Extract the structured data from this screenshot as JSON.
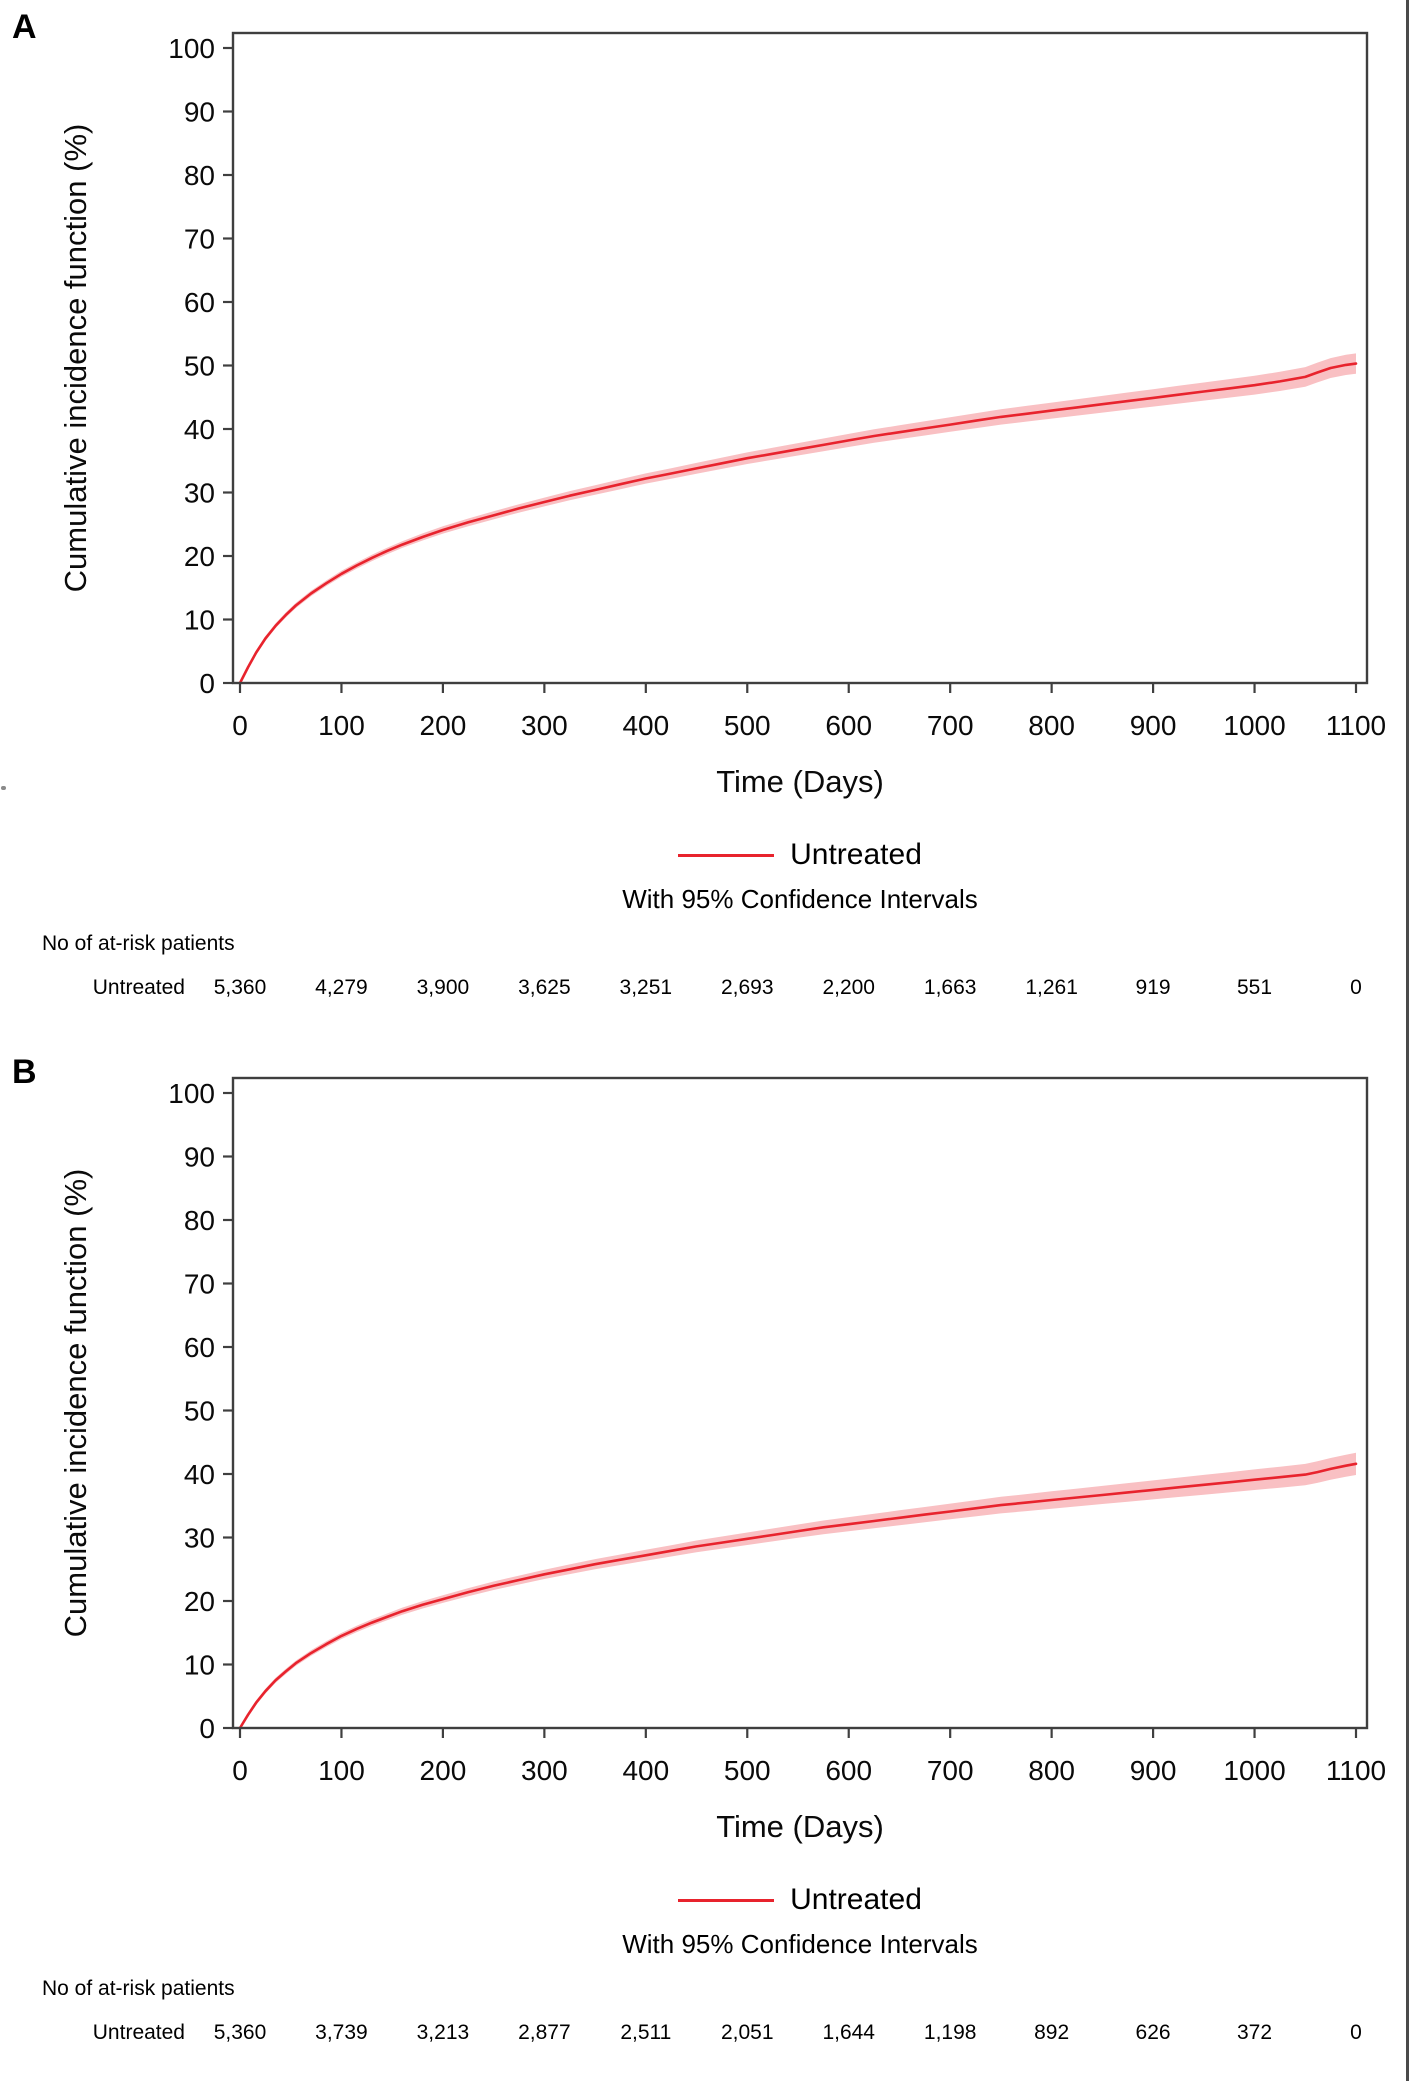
{
  "page": {
    "panel_a_letter": "A",
    "panel_b_letter": "B"
  },
  "colors": {
    "curve_red": "#e8232d",
    "band_pink": "#f9c0c3",
    "axis_gray": "#3f3f3f"
  },
  "chart_data": [
    {
      "panel": "A",
      "type": "line",
      "xlabel": "Time (Days)",
      "ylabel": "Cumulative incidence function (%)",
      "xlim": [
        0,
        1100
      ],
      "ylim": [
        0,
        100
      ],
      "x_ticks": [
        0,
        100,
        200,
        300,
        400,
        500,
        600,
        700,
        800,
        900,
        1000,
        1100
      ],
      "y_ticks": [
        0,
        10,
        20,
        30,
        40,
        50,
        60,
        70,
        80,
        90,
        100
      ],
      "grid": false,
      "legend": {
        "label": "Untreated",
        "note": "With 95% Confidence Intervals",
        "position": "bottom-center"
      },
      "series": [
        {
          "name": "Untreated",
          "color": "#e8232d",
          "band_color": "#f9c0c3",
          "ci_halfwidth_start": 0.35,
          "ci_halfwidth_end": 1.6,
          "points": [
            [
              0,
              0
            ],
            [
              8,
              2.5
            ],
            [
              16,
              4.8
            ],
            [
              25,
              7.0
            ],
            [
              35,
              9.0
            ],
            [
              45,
              10.7
            ],
            [
              55,
              12.2
            ],
            [
              70,
              14.1
            ],
            [
              85,
              15.7
            ],
            [
              100,
              17.2
            ],
            [
              115,
              18.5
            ],
            [
              130,
              19.7
            ],
            [
              145,
              20.8
            ],
            [
              160,
              21.8
            ],
            [
              180,
              23.0
            ],
            [
              200,
              24.1
            ],
            [
              225,
              25.3
            ],
            [
              250,
              26.4
            ],
            [
              275,
              27.5
            ],
            [
              300,
              28.5
            ],
            [
              325,
              29.5
            ],
            [
              350,
              30.4
            ],
            [
              375,
              31.3
            ],
            [
              400,
              32.2
            ],
            [
              425,
              33.0
            ],
            [
              450,
              33.8
            ],
            [
              475,
              34.6
            ],
            [
              500,
              35.4
            ],
            [
              525,
              36.1
            ],
            [
              550,
              36.8
            ],
            [
              575,
              37.5
            ],
            [
              600,
              38.2
            ],
            [
              625,
              38.9
            ],
            [
              650,
              39.5
            ],
            [
              675,
              40.1
            ],
            [
              700,
              40.7
            ],
            [
              725,
              41.3
            ],
            [
              750,
              41.9
            ],
            [
              775,
              42.4
            ],
            [
              800,
              42.9
            ],
            [
              825,
              43.4
            ],
            [
              850,
              43.9
            ],
            [
              875,
              44.4
            ],
            [
              900,
              44.9
            ],
            [
              925,
              45.4
            ],
            [
              950,
              45.9
            ],
            [
              975,
              46.4
            ],
            [
              1000,
              46.9
            ],
            [
              1025,
              47.5
            ],
            [
              1050,
              48.2
            ],
            [
              1062,
              48.9
            ],
            [
              1075,
              49.6
            ],
            [
              1090,
              50.1
            ],
            [
              1100,
              50.3
            ]
          ]
        }
      ],
      "at_risk": {
        "header": "No of at-risk patients",
        "row_label": "Untreated",
        "values": [
          "5,360",
          "4,279",
          "3,900",
          "3,625",
          "3,251",
          "2,693",
          "2,200",
          "1,663",
          "1,261",
          "919",
          "551",
          "0"
        ]
      }
    },
    {
      "panel": "B",
      "type": "line",
      "xlabel": "Time (Days)",
      "ylabel": "Cumulative incidence function (%)",
      "xlim": [
        0,
        1100
      ],
      "ylim": [
        0,
        100
      ],
      "x_ticks": [
        0,
        100,
        200,
        300,
        400,
        500,
        600,
        700,
        800,
        900,
        1000,
        1100
      ],
      "y_ticks": [
        0,
        10,
        20,
        30,
        40,
        50,
        60,
        70,
        80,
        90,
        100
      ],
      "grid": false,
      "legend": {
        "label": "Untreated",
        "note": "With 95% Confidence Intervals",
        "position": "bottom-center"
      },
      "series": [
        {
          "name": "Untreated",
          "color": "#e8232d",
          "band_color": "#f9c0c3",
          "ci_halfwidth_start": 0.35,
          "ci_halfwidth_end": 1.75,
          "points": [
            [
              0,
              0
            ],
            [
              8,
              2.1
            ],
            [
              16,
              4.0
            ],
            [
              25,
              5.8
            ],
            [
              35,
              7.5
            ],
            [
              45,
              8.9
            ],
            [
              55,
              10.2
            ],
            [
              70,
              11.8
            ],
            [
              85,
              13.2
            ],
            [
              100,
              14.5
            ],
            [
              115,
              15.6
            ],
            [
              130,
              16.6
            ],
            [
              145,
              17.5
            ],
            [
              160,
              18.4
            ],
            [
              180,
              19.4
            ],
            [
              200,
              20.3
            ],
            [
              225,
              21.4
            ],
            [
              250,
              22.4
            ],
            [
              275,
              23.3
            ],
            [
              300,
              24.2
            ],
            [
              325,
              25.0
            ],
            [
              350,
              25.8
            ],
            [
              375,
              26.5
            ],
            [
              400,
              27.2
            ],
            [
              425,
              27.9
            ],
            [
              450,
              28.6
            ],
            [
              475,
              29.2
            ],
            [
              500,
              29.8
            ],
            [
              525,
              30.4
            ],
            [
              550,
              31.0
            ],
            [
              575,
              31.6
            ],
            [
              600,
              32.1
            ],
            [
              625,
              32.6
            ],
            [
              650,
              33.1
            ],
            [
              675,
              33.6
            ],
            [
              700,
              34.1
            ],
            [
              725,
              34.6
            ],
            [
              750,
              35.1
            ],
            [
              775,
              35.5
            ],
            [
              800,
              35.9
            ],
            [
              825,
              36.3
            ],
            [
              850,
              36.7
            ],
            [
              875,
              37.1
            ],
            [
              900,
              37.5
            ],
            [
              925,
              37.9
            ],
            [
              950,
              38.3
            ],
            [
              975,
              38.7
            ],
            [
              1000,
              39.1
            ],
            [
              1025,
              39.5
            ],
            [
              1050,
              39.9
            ],
            [
              1062,
              40.3
            ],
            [
              1075,
              40.8
            ],
            [
              1090,
              41.3
            ],
            [
              1100,
              41.6
            ]
          ]
        }
      ],
      "at_risk": {
        "header": "No of at-risk patients",
        "row_label": "Untreated",
        "values": [
          "5,360",
          "3,739",
          "3,213",
          "2,877",
          "2,511",
          "2,051",
          "1,644",
          "1,198",
          "892",
          "626",
          "372",
          "0"
        ]
      }
    }
  ]
}
